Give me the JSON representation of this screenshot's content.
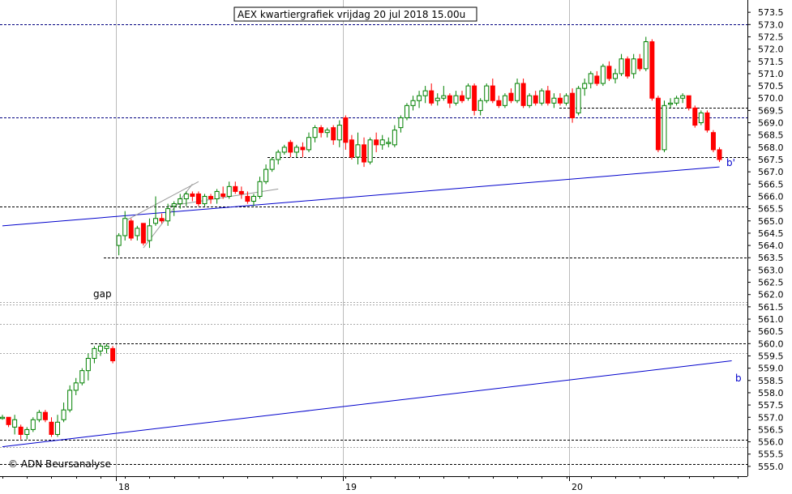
{
  "chart_data": {
    "type": "candlestick",
    "title": "AEX kwartiergrafiek vrijdag 20 jul 2018 15.00u",
    "copyright": "© ADN Beursanalyse",
    "gap_label": "gap",
    "trendline_label_upper": "b'",
    "trendline_label_lower": "b",
    "ylim": [
      554.6,
      574.0
    ],
    "y_ticks": [
      "555.0",
      "555.5",
      "556.0",
      "556.5",
      "557.0",
      "557.5",
      "558.0",
      "558.5",
      "559.0",
      "559.5",
      "560.0",
      "560.5",
      "561.0",
      "561.5",
      "562.0",
      "562.5",
      "563.0",
      "563.5",
      "564.0",
      "564.5",
      "565.0",
      "565.5",
      "566.0",
      "566.5",
      "567.0",
      "567.5",
      "568.0",
      "568.5",
      "569.0",
      "569.5",
      "570.0",
      "570.5",
      "571.0",
      "571.5",
      "572.0",
      "572.5",
      "573.0",
      "573.5"
    ],
    "x_labels": [
      {
        "label": "18",
        "index": 19
      },
      {
        "label": "19",
        "index": 56
      },
      {
        "label": "20",
        "index": 93
      }
    ],
    "colors": {
      "up": "#008000",
      "down": "#ff0000",
      "trend": "#0000cc",
      "grid": "#999999",
      "level": "#000000",
      "resistance": "#000080"
    },
    "levels": {
      "dashed_black": [
        555.1,
        556.1,
        560.0,
        563.5,
        565.6,
        567.6,
        569.6
      ],
      "dashed_navy": [
        573.0,
        569.2
      ],
      "dotted_grey": [
        561.7,
        561.6,
        560.8,
        559.6,
        555.8
      ]
    },
    "trendlines": [
      {
        "name": "b",
        "from": [
          0,
          555.8
        ],
        "to": [
          119,
          559.3
        ]
      },
      {
        "name": "b'",
        "from": [
          0,
          564.8
        ],
        "to": [
          117,
          567.2
        ]
      }
    ],
    "candles": [
      {
        "o": 557.0,
        "h": 557.1,
        "l": 556.9,
        "c": 557.0
      },
      {
        "o": 557.0,
        "h": 557.0,
        "l": 556.6,
        "c": 556.7
      },
      {
        "o": 556.6,
        "h": 557.1,
        "l": 556.3,
        "c": 556.9
      },
      {
        "o": 556.6,
        "h": 556.7,
        "l": 556.1,
        "c": 556.3
      },
      {
        "o": 556.3,
        "h": 556.6,
        "l": 556.1,
        "c": 556.5
      },
      {
        "o": 556.5,
        "h": 557.0,
        "l": 556.4,
        "c": 556.9
      },
      {
        "o": 556.9,
        "h": 557.3,
        "l": 556.8,
        "c": 557.2
      },
      {
        "o": 557.2,
        "h": 557.3,
        "l": 556.8,
        "c": 556.9
      },
      {
        "o": 556.8,
        "h": 557.0,
        "l": 556.2,
        "c": 556.3
      },
      {
        "o": 556.3,
        "h": 557.1,
        "l": 556.2,
        "c": 556.8
      },
      {
        "o": 556.9,
        "h": 557.6,
        "l": 556.8,
        "c": 557.3
      },
      {
        "o": 557.3,
        "h": 558.3,
        "l": 557.2,
        "c": 558.1
      },
      {
        "o": 558.1,
        "h": 558.6,
        "l": 557.9,
        "c": 558.4
      },
      {
        "o": 558.4,
        "h": 559.0,
        "l": 558.3,
        "c": 558.9
      },
      {
        "o": 558.9,
        "h": 559.6,
        "l": 558.5,
        "c": 559.4
      },
      {
        "o": 559.4,
        "h": 559.9,
        "l": 559.2,
        "c": 559.8
      },
      {
        "o": 559.7,
        "h": 560.0,
        "l": 559.5,
        "c": 559.9
      },
      {
        "o": 559.8,
        "h": 560.0,
        "l": 559.6,
        "c": 559.9
      },
      {
        "o": 559.8,
        "h": 559.9,
        "l": 559.2,
        "c": 559.3
      },
      {
        "o": 564.0,
        "h": 564.5,
        "l": 563.6,
        "c": 564.4
      },
      {
        "o": 564.4,
        "h": 565.4,
        "l": 564.2,
        "c": 565.1
      },
      {
        "o": 565.0,
        "h": 565.1,
        "l": 564.2,
        "c": 564.3
      },
      {
        "o": 564.4,
        "h": 564.8,
        "l": 564.2,
        "c": 564.7
      },
      {
        "o": 564.9,
        "h": 564.9,
        "l": 564.0,
        "c": 564.1
      },
      {
        "o": 564.2,
        "h": 565.1,
        "l": 563.9,
        "c": 564.8
      },
      {
        "o": 564.9,
        "h": 566.0,
        "l": 564.8,
        "c": 565.1
      },
      {
        "o": 565.1,
        "h": 565.3,
        "l": 564.9,
        "c": 565.0
      },
      {
        "o": 565.0,
        "h": 565.7,
        "l": 564.8,
        "c": 565.5
      },
      {
        "o": 565.6,
        "h": 565.8,
        "l": 565.2,
        "c": 565.7
      },
      {
        "o": 565.7,
        "h": 566.1,
        "l": 565.5,
        "c": 565.9
      },
      {
        "o": 565.9,
        "h": 566.2,
        "l": 565.6,
        "c": 566.1
      },
      {
        "o": 566.1,
        "h": 566.2,
        "l": 565.8,
        "c": 566.0
      },
      {
        "o": 566.1,
        "h": 566.2,
        "l": 565.6,
        "c": 565.7
      },
      {
        "o": 565.7,
        "h": 566.1,
        "l": 565.6,
        "c": 566.0
      },
      {
        "o": 566.0,
        "h": 566.1,
        "l": 565.7,
        "c": 565.9
      },
      {
        "o": 565.9,
        "h": 566.3,
        "l": 565.7,
        "c": 566.2
      },
      {
        "o": 566.1,
        "h": 566.4,
        "l": 565.9,
        "c": 566.0
      },
      {
        "o": 566.0,
        "h": 566.6,
        "l": 565.9,
        "c": 566.4
      },
      {
        "o": 566.4,
        "h": 566.6,
        "l": 566.1,
        "c": 566.2
      },
      {
        "o": 566.2,
        "h": 566.4,
        "l": 565.9,
        "c": 566.1
      },
      {
        "o": 566.0,
        "h": 566.2,
        "l": 565.7,
        "c": 565.8
      },
      {
        "o": 565.8,
        "h": 566.1,
        "l": 565.6,
        "c": 566.0
      },
      {
        "o": 566.0,
        "h": 566.8,
        "l": 565.9,
        "c": 566.6
      },
      {
        "o": 566.6,
        "h": 567.3,
        "l": 566.5,
        "c": 567.1
      },
      {
        "o": 567.1,
        "h": 567.6,
        "l": 567.0,
        "c": 567.5
      },
      {
        "o": 567.5,
        "h": 567.9,
        "l": 567.3,
        "c": 567.8
      },
      {
        "o": 567.8,
        "h": 568.1,
        "l": 567.7,
        "c": 568.0
      },
      {
        "o": 568.2,
        "h": 568.3,
        "l": 567.6,
        "c": 567.8
      },
      {
        "o": 567.8,
        "h": 568.1,
        "l": 567.6,
        "c": 568.0
      },
      {
        "o": 568.0,
        "h": 568.2,
        "l": 567.6,
        "c": 567.9
      },
      {
        "o": 567.9,
        "h": 568.6,
        "l": 567.8,
        "c": 568.4
      },
      {
        "o": 568.4,
        "h": 568.9,
        "l": 568.2,
        "c": 568.8
      },
      {
        "o": 568.8,
        "h": 568.9,
        "l": 568.4,
        "c": 568.6
      },
      {
        "o": 568.6,
        "h": 568.8,
        "l": 568.4,
        "c": 568.7
      },
      {
        "o": 568.8,
        "h": 568.9,
        "l": 568.1,
        "c": 568.3
      },
      {
        "o": 568.3,
        "h": 569.1,
        "l": 568.0,
        "c": 568.9
      },
      {
        "o": 569.2,
        "h": 569.3,
        "l": 567.9,
        "c": 568.2
      },
      {
        "o": 568.3,
        "h": 568.5,
        "l": 567.5,
        "c": 567.6
      },
      {
        "o": 567.6,
        "h": 568.6,
        "l": 567.3,
        "c": 568.1
      },
      {
        "o": 568.1,
        "h": 568.4,
        "l": 567.2,
        "c": 567.4
      },
      {
        "o": 567.4,
        "h": 568.4,
        "l": 567.3,
        "c": 568.3
      },
      {
        "o": 568.3,
        "h": 568.6,
        "l": 567.8,
        "c": 568.1
      },
      {
        "o": 568.1,
        "h": 568.5,
        "l": 567.9,
        "c": 568.3
      },
      {
        "o": 568.2,
        "h": 568.4,
        "l": 568.0,
        "c": 568.2
      },
      {
        "o": 568.1,
        "h": 568.9,
        "l": 568.0,
        "c": 568.7
      },
      {
        "o": 568.8,
        "h": 569.3,
        "l": 568.6,
        "c": 569.2
      },
      {
        "o": 569.2,
        "h": 569.8,
        "l": 569.1,
        "c": 569.7
      },
      {
        "o": 569.7,
        "h": 570.1,
        "l": 569.5,
        "c": 569.9
      },
      {
        "o": 569.9,
        "h": 570.3,
        "l": 569.6,
        "c": 570.1
      },
      {
        "o": 570.1,
        "h": 570.5,
        "l": 569.8,
        "c": 570.3
      },
      {
        "o": 570.3,
        "h": 570.6,
        "l": 569.7,
        "c": 569.8
      },
      {
        "o": 569.9,
        "h": 570.2,
        "l": 569.7,
        "c": 570.0
      },
      {
        "o": 570.0,
        "h": 570.5,
        "l": 569.9,
        "c": 570.1
      },
      {
        "o": 570.1,
        "h": 570.2,
        "l": 569.6,
        "c": 569.8
      },
      {
        "o": 569.8,
        "h": 570.3,
        "l": 569.7,
        "c": 570.1
      },
      {
        "o": 570.1,
        "h": 570.3,
        "l": 569.8,
        "c": 569.9
      },
      {
        "o": 570.0,
        "h": 570.6,
        "l": 569.9,
        "c": 570.5
      },
      {
        "o": 570.5,
        "h": 570.6,
        "l": 569.3,
        "c": 569.5
      },
      {
        "o": 569.5,
        "h": 570.0,
        "l": 569.3,
        "c": 569.9
      },
      {
        "o": 569.9,
        "h": 570.6,
        "l": 569.8,
        "c": 570.5
      },
      {
        "o": 570.5,
        "h": 570.8,
        "l": 569.8,
        "c": 569.9
      },
      {
        "o": 569.9,
        "h": 570.1,
        "l": 569.6,
        "c": 569.7
      },
      {
        "o": 569.7,
        "h": 570.2,
        "l": 569.6,
        "c": 570.1
      },
      {
        "o": 570.2,
        "h": 570.4,
        "l": 569.8,
        "c": 569.9
      },
      {
        "o": 569.9,
        "h": 570.8,
        "l": 569.8,
        "c": 570.6
      },
      {
        "o": 570.6,
        "h": 570.8,
        "l": 569.6,
        "c": 569.7
      },
      {
        "o": 569.7,
        "h": 570.2,
        "l": 569.6,
        "c": 570.1
      },
      {
        "o": 570.1,
        "h": 570.3,
        "l": 569.7,
        "c": 569.8
      },
      {
        "o": 569.8,
        "h": 570.4,
        "l": 569.7,
        "c": 570.3
      },
      {
        "o": 570.3,
        "h": 570.5,
        "l": 569.7,
        "c": 569.8
      },
      {
        "o": 569.8,
        "h": 570.2,
        "l": 569.6,
        "c": 570.0
      },
      {
        "o": 570.0,
        "h": 570.2,
        "l": 569.7,
        "c": 569.8
      },
      {
        "o": 569.8,
        "h": 570.2,
        "l": 569.7,
        "c": 570.1
      },
      {
        "o": 570.2,
        "h": 570.4,
        "l": 569.0,
        "c": 569.2
      },
      {
        "o": 569.4,
        "h": 570.5,
        "l": 569.3,
        "c": 570.4
      },
      {
        "o": 570.4,
        "h": 570.8,
        "l": 570.1,
        "c": 570.6
      },
      {
        "o": 570.6,
        "h": 571.1,
        "l": 570.4,
        "c": 571.0
      },
      {
        "o": 570.9,
        "h": 571.1,
        "l": 570.5,
        "c": 570.6
      },
      {
        "o": 570.6,
        "h": 571.4,
        "l": 570.5,
        "c": 571.3
      },
      {
        "o": 571.3,
        "h": 571.5,
        "l": 570.7,
        "c": 570.8
      },
      {
        "o": 570.8,
        "h": 571.2,
        "l": 570.6,
        "c": 571.0
      },
      {
        "o": 571.0,
        "h": 571.8,
        "l": 570.9,
        "c": 571.6
      },
      {
        "o": 571.6,
        "h": 571.7,
        "l": 570.8,
        "c": 570.9
      },
      {
        "o": 571.0,
        "h": 571.8,
        "l": 570.8,
        "c": 571.6
      },
      {
        "o": 571.6,
        "h": 571.8,
        "l": 571.1,
        "c": 571.2
      },
      {
        "o": 571.2,
        "h": 572.5,
        "l": 571.1,
        "c": 572.3
      },
      {
        "o": 572.3,
        "h": 572.4,
        "l": 569.9,
        "c": 570.0
      },
      {
        "o": 570.0,
        "h": 570.1,
        "l": 567.8,
        "c": 567.9
      },
      {
        "o": 567.9,
        "h": 569.9,
        "l": 567.8,
        "c": 569.7
      },
      {
        "o": 569.8,
        "h": 570.0,
        "l": 569.6,
        "c": 569.8
      },
      {
        "o": 569.8,
        "h": 570.1,
        "l": 569.7,
        "c": 570.0
      },
      {
        "o": 570.0,
        "h": 570.2,
        "l": 569.8,
        "c": 570.1
      },
      {
        "o": 570.1,
        "h": 570.1,
        "l": 569.5,
        "c": 569.6
      },
      {
        "o": 569.6,
        "h": 569.7,
        "l": 568.8,
        "c": 568.9
      },
      {
        "o": 569.0,
        "h": 569.5,
        "l": 568.9,
        "c": 569.4
      },
      {
        "o": 569.4,
        "h": 569.5,
        "l": 568.6,
        "c": 568.7
      },
      {
        "o": 568.6,
        "h": 568.7,
        "l": 567.8,
        "c": 567.9
      },
      {
        "o": 567.9,
        "h": 568.0,
        "l": 567.4,
        "c": 567.5
      }
    ]
  }
}
